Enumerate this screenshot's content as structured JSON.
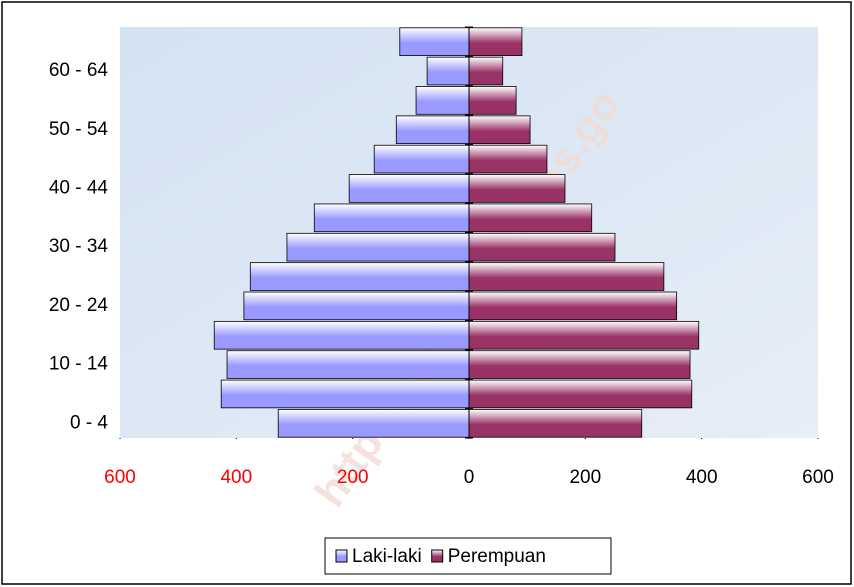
{
  "chart_data": {
    "type": "pyramid",
    "categories": [
      "0 - 4",
      null,
      "10 - 14",
      null,
      "20 - 24",
      null,
      "30 - 34",
      null,
      "40 - 44",
      null,
      "50 - 54",
      null,
      "60 - 64",
      null
    ],
    "series": [
      {
        "name": "Laki-laki",
        "color": "#9999ff",
        "values": [
          -328,
          -426,
          -416,
          -438,
          -387,
          -376,
          -313,
          -266,
          -206,
          -163,
          -125,
          -91,
          -72,
          -119
        ]
      },
      {
        "name": "Perempuan",
        "color": "#993366",
        "values": [
          297,
          383,
          380,
          395,
          357,
          335,
          251,
          211,
          165,
          134,
          105,
          81,
          58,
          91
        ]
      }
    ],
    "xlim": [
      -600,
      600
    ],
    "xticks": [
      {
        "value": -600,
        "label": "600"
      },
      {
        "value": -400,
        "label": "400"
      },
      {
        "value": -200,
        "label": "200"
      },
      0,
      200,
      400,
      600
    ],
    "xtick_colors": [
      "#ff0000",
      "#ff0000",
      "#ff0000",
      "#000000",
      "#000000",
      "#000000",
      "#000000"
    ],
    "legend": "bottom",
    "watermark": "http://gumaskab.bps.go"
  }
}
